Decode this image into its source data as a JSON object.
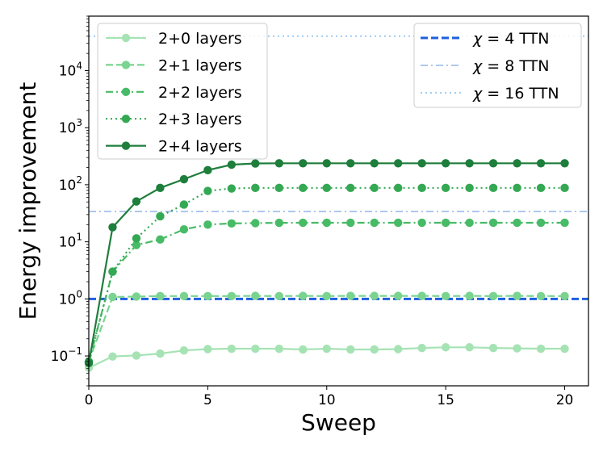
{
  "chart_data": {
    "type": "line",
    "xlabel": "Sweep",
    "ylabel": "Energy improvement",
    "y_scale": "log",
    "xlim": [
      0,
      21
    ],
    "ylim": [
      0.03,
      90000
    ],
    "x_ticks": [
      {
        "value": 0,
        "label": "0"
      },
      {
        "value": 5,
        "label": "5"
      },
      {
        "value": 10,
        "label": "10"
      },
      {
        "value": 15,
        "label": "15"
      },
      {
        "value": 20,
        "label": "20"
      }
    ],
    "y_ticks": [
      {
        "value": 0.1,
        "base": "10",
        "exp": "−1"
      },
      {
        "value": 1,
        "base": "10",
        "exp": "0"
      },
      {
        "value": 10,
        "base": "10",
        "exp": "1"
      },
      {
        "value": 100,
        "base": "10",
        "exp": "2"
      },
      {
        "value": 1000,
        "base": "10",
        "exp": "3"
      },
      {
        "value": 10000,
        "base": "10",
        "exp": "4"
      }
    ],
    "grid": false,
    "x": [
      0,
      1,
      2,
      3,
      4,
      5,
      6,
      7,
      8,
      9,
      10,
      11,
      12,
      13,
      14,
      15,
      16,
      17,
      18,
      19,
      20
    ],
    "series": [
      {
        "name": "2+0 layers",
        "color": "#a6e3b4",
        "linestyle": "solid",
        "values": [
          0.062,
          0.098,
          0.102,
          0.11,
          0.125,
          0.132,
          0.134,
          0.134,
          0.134,
          0.13,
          0.134,
          0.13,
          0.13,
          0.132,
          0.138,
          0.142,
          0.142,
          0.138,
          0.136,
          0.134,
          0.134
        ]
      },
      {
        "name": "2+1 layers",
        "color": "#7ad48f",
        "linestyle": "dashed",
        "values": [
          0.08,
          1.08,
          1.1,
          1.12,
          1.12,
          1.12,
          1.12,
          1.13,
          1.12,
          1.13,
          1.12,
          1.13,
          1.13,
          1.13,
          1.13,
          1.12,
          1.13,
          1.12,
          1.13,
          1.12,
          1.12
        ]
      },
      {
        "name": "2+2 layers",
        "color": "#48bb67",
        "linestyle": "dashdot",
        "values": [
          0.08,
          3.0,
          8.8,
          11.0,
          16.5,
          20.0,
          21.0,
          21.3,
          21.5,
          21.6,
          21.6,
          21.6,
          21.6,
          21.6,
          21.6,
          21.6,
          21.6,
          21.6,
          21.6,
          21.6,
          21.6
        ]
      },
      {
        "name": "2+3 layers",
        "color": "#34a853",
        "linestyle": "dotted",
        "values": [
          0.078,
          3.0,
          11.5,
          28.0,
          45.0,
          78.0,
          86.0,
          88.0,
          88.0,
          88.0,
          88.0,
          88.0,
          88.0,
          88.0,
          88.0,
          88.0,
          88.0,
          88.0,
          88.0,
          88.0,
          88.0
        ]
      },
      {
        "name": "2+4 layers",
        "color": "#1e7e3c",
        "linestyle": "solid",
        "values": [
          0.075,
          18.0,
          51.0,
          88.0,
          125.0,
          180.0,
          225.0,
          236.0,
          238.0,
          238.0,
          238.0,
          238.0,
          238.0,
          238.0,
          238.0,
          238.0,
          238.0,
          238.0,
          238.0,
          238.0,
          238.0
        ]
      }
    ],
    "reference_lines": [
      {
        "name": "χ = 4 TTN",
        "symbol": "χ",
        "eq": " = 4 TTN",
        "value": 1.0,
        "color": "#1f5fe0",
        "linestyle": "dashed"
      },
      {
        "name": "χ = 8 TTN",
        "symbol": "χ",
        "eq": " = 8 TTN",
        "value": 34.0,
        "color": "#7aa7e8",
        "linestyle": "dashdot"
      },
      {
        "name": "χ = 16 TTN",
        "symbol": "χ",
        "eq": " = 16 TTN",
        "value": 40000.0,
        "color": "#6aaee8",
        "linestyle": "dotted"
      }
    ],
    "legend_left_placement": "top-left",
    "legend_right_placement": "top-right"
  }
}
